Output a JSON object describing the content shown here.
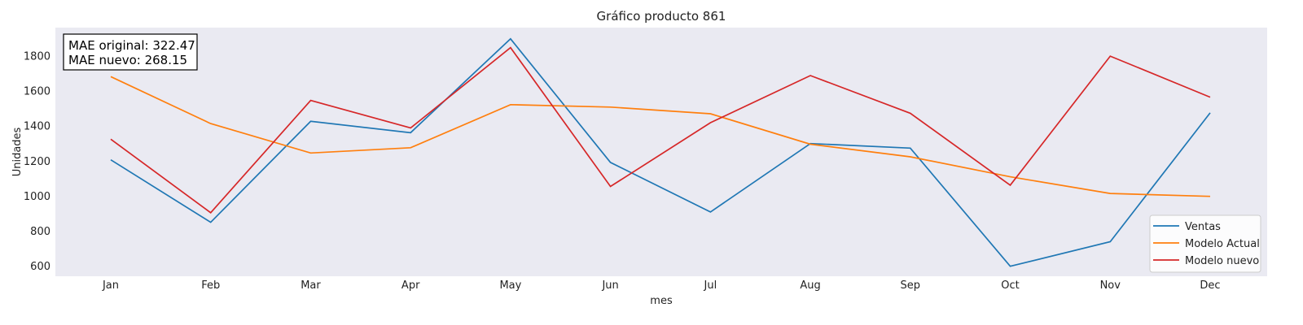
{
  "chart_data": {
    "type": "line",
    "title": "Gráfico producto 861",
    "xlabel": "mes",
    "ylabel": "Unidades",
    "categories": [
      "Jan",
      "Feb",
      "Mar",
      "Apr",
      "May",
      "Jun",
      "Jul",
      "Aug",
      "Sep",
      "Oct",
      "Nov",
      "Dec"
    ],
    "yticks": [
      600,
      800,
      1000,
      1200,
      1400,
      1600,
      1800
    ],
    "ylim": [
      540,
      1960
    ],
    "grid": false,
    "legend_position": "bottom-right",
    "annotation": {
      "line1": "MAE original: 322.47",
      "line2": "MAE nuevo: 268.15"
    },
    "series": [
      {
        "name": "Ventas",
        "color": "#1f77b4",
        "values": [
          1205,
          848,
          1425,
          1360,
          1896,
          1190,
          907,
          1298,
          1272,
          597,
          737,
          1473
        ]
      },
      {
        "name": "Modelo Actual",
        "color": "#ff7f0e",
        "values": [
          1680,
          1412,
          1244,
          1274,
          1520,
          1506,
          1468,
          1294,
          1222,
          1108,
          1013,
          996
        ]
      },
      {
        "name": "Modelo nuevo",
        "color": "#d62728",
        "values": [
          1323,
          903,
          1544,
          1387,
          1846,
          1053,
          1417,
          1686,
          1471,
          1060,
          1797,
          1563
        ]
      }
    ]
  }
}
